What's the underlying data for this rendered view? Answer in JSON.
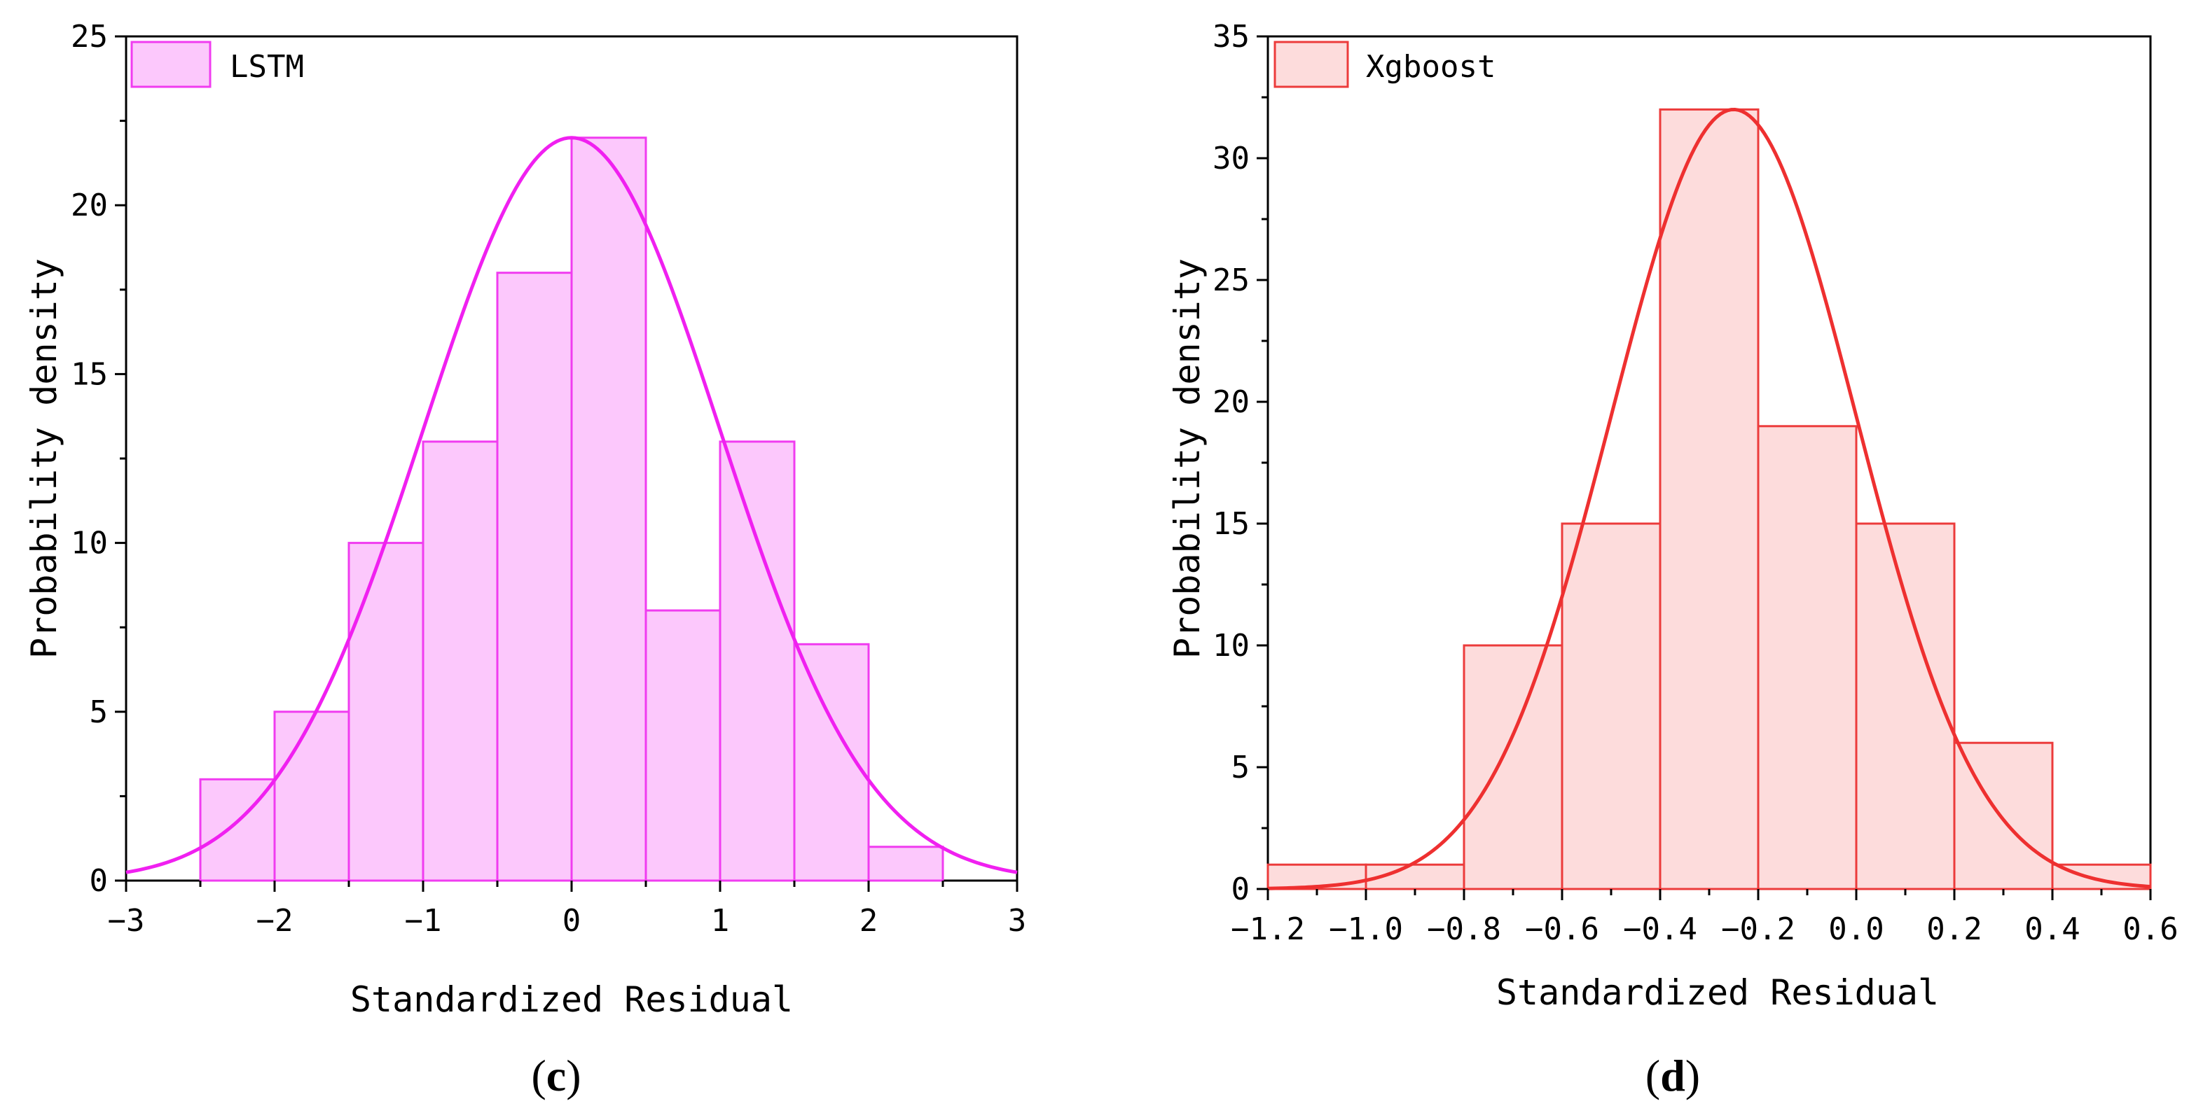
{
  "chart_data": [
    {
      "type": "bar",
      "panel_label": "c",
      "legend": "LSTM",
      "xlabel": "Standardized Residual",
      "ylabel": "Probability density",
      "bins": [
        {
          "start": -2.5,
          "end": -2.0,
          "value": 3
        },
        {
          "start": -2.0,
          "end": -1.5,
          "value": 5
        },
        {
          "start": -1.5,
          "end": -1.0,
          "value": 10
        },
        {
          "start": -1.0,
          "end": -0.5,
          "value": 13
        },
        {
          "start": -0.5,
          "end": 0.0,
          "value": 18
        },
        {
          "start": 0.0,
          "end": 0.5,
          "value": 22
        },
        {
          "start": 0.5,
          "end": 1.0,
          "value": 8
        },
        {
          "start": 1.0,
          "end": 1.5,
          "value": 13
        },
        {
          "start": 1.5,
          "end": 2.0,
          "value": 7
        },
        {
          "start": 2.0,
          "end": 2.5,
          "value": 1
        }
      ],
      "fit_curve": {
        "type": "normal",
        "mean": 0.0,
        "sd": 1.0,
        "peak": 22
      },
      "xlim": [
        -3,
        3
      ],
      "ylim": [
        0,
        25
      ],
      "xticks": [
        -3,
        -2,
        -1,
        0,
        1,
        2,
        3
      ],
      "xtick_labels": [
        "−3",
        "−2",
        "−1",
        "0",
        "1",
        "2",
        "3"
      ],
      "yticks": [
        0,
        5,
        10,
        15,
        20,
        25
      ],
      "ytick_labels": [
        "0",
        "5",
        "10",
        "15",
        "20",
        "25"
      ],
      "bar_fill": "#fcc8fc",
      "bar_edge": "#f03cf0",
      "curve_color": "#f020f0"
    },
    {
      "type": "bar",
      "panel_label": "d",
      "legend": "Xgboost",
      "xlabel": "Standardized Residual",
      "ylabel": "Probability density",
      "bins": [
        {
          "start": -1.2,
          "end": -1.0,
          "value": 1
        },
        {
          "start": -1.0,
          "end": -0.8,
          "value": 1
        },
        {
          "start": -0.8,
          "end": -0.6,
          "value": 10
        },
        {
          "start": -0.6,
          "end": -0.4,
          "value": 15
        },
        {
          "start": -0.4,
          "end": -0.2,
          "value": 32
        },
        {
          "start": -0.2,
          "end": 0.0,
          "value": 19
        },
        {
          "start": 0.0,
          "end": 0.2,
          "value": 15
        },
        {
          "start": 0.2,
          "end": 0.4,
          "value": 6
        },
        {
          "start": 0.4,
          "end": 0.6,
          "value": 1
        }
      ],
      "fit_curve": {
        "type": "normal",
        "mean": -0.25,
        "sd": 0.25,
        "peak": 32
      },
      "xlim": [
        -1.2,
        0.6
      ],
      "ylim": [
        0,
        35
      ],
      "xticks": [
        -1.2,
        -1.0,
        -0.8,
        -0.6,
        -0.4,
        -0.2,
        0.0,
        0.2,
        0.4,
        0.6
      ],
      "xtick_labels": [
        "−1.2",
        "−1.0",
        "−0.8",
        "−0.6",
        "−0.4",
        "−0.2",
        "0.0",
        "0.2",
        "0.4",
        "0.6"
      ],
      "yticks": [
        0,
        5,
        10,
        15,
        20,
        25,
        30,
        35
      ],
      "ytick_labels": [
        "0",
        "5",
        "10",
        "15",
        "20",
        "25",
        "30",
        "35"
      ],
      "bar_fill": "#fddcdc",
      "bar_edge": "#ec3b3b",
      "curve_color": "#ee3030"
    }
  ]
}
